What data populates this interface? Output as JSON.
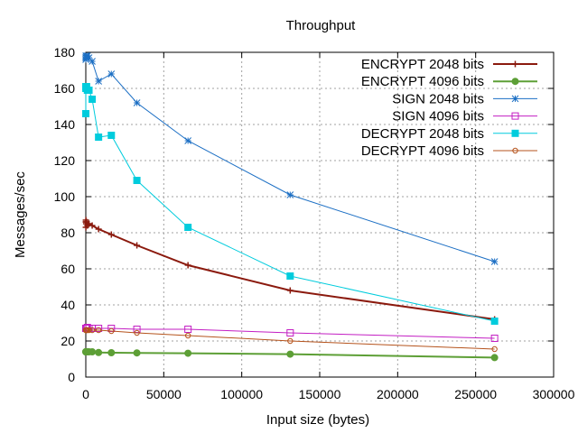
{
  "chart_data": {
    "type": "line",
    "title": "Throughput",
    "xlabel": "Input size (bytes)",
    "ylabel": "Messages/sec",
    "xlim": [
      0,
      300000
    ],
    "ylim": [
      0,
      180
    ],
    "x_ticks": [
      0,
      50000,
      100000,
      150000,
      200000,
      250000,
      300000
    ],
    "y_ticks": [
      0,
      20,
      40,
      60,
      80,
      100,
      120,
      140,
      160,
      180
    ],
    "x_tick_labels": [
      "0",
      "50000",
      "100000",
      "150000",
      "200000",
      "250000",
      "300000"
    ],
    "y_tick_labels": [
      "0",
      "20",
      "40",
      "60",
      "80",
      "100",
      "120",
      "140",
      "160",
      "180"
    ],
    "grid": true,
    "legend_position": "top-right",
    "series": [
      {
        "name": "ENCRYPT 2048 bits",
        "color": "#8b1a0e",
        "marker": "plus",
        "points": [
          [
            16,
            86
          ],
          [
            32,
            83
          ],
          [
            64,
            87
          ],
          [
            128,
            86
          ],
          [
            256,
            85
          ],
          [
            512,
            86
          ],
          [
            1024,
            84
          ],
          [
            2048,
            85
          ],
          [
            4096,
            84
          ],
          [
            8192,
            82
          ],
          [
            16384,
            79
          ],
          [
            32768,
            73
          ],
          [
            65536,
            62
          ],
          [
            131072,
            48
          ],
          [
            262144,
            32
          ]
        ]
      },
      {
        "name": "ENCRYPT 4096 bits",
        "color": "#5d9f36",
        "marker": "filled-circle",
        "points": [
          [
            16,
            14
          ],
          [
            32,
            14
          ],
          [
            64,
            14
          ],
          [
            128,
            14
          ],
          [
            256,
            14
          ],
          [
            512,
            14
          ],
          [
            1024,
            14
          ],
          [
            2048,
            14
          ],
          [
            4096,
            14
          ],
          [
            8192,
            13.6
          ],
          [
            16384,
            13.5
          ],
          [
            32768,
            13.4
          ],
          [
            65536,
            13.2
          ],
          [
            131072,
            12.7
          ],
          [
            262144,
            10.8
          ]
        ]
      },
      {
        "name": "SIGN 2048 bits",
        "color": "#1c6fc4",
        "marker": "star",
        "points": [
          [
            16,
            177
          ],
          [
            32,
            176
          ],
          [
            64,
            178
          ],
          [
            128,
            177
          ],
          [
            256,
            178
          ],
          [
            512,
            177
          ],
          [
            1024,
            178
          ],
          [
            2048,
            177
          ],
          [
            4096,
            175
          ],
          [
            8192,
            164
          ],
          [
            16384,
            168
          ],
          [
            32768,
            152
          ],
          [
            65536,
            131
          ],
          [
            131072,
            101
          ],
          [
            262144,
            64
          ]
        ]
      },
      {
        "name": "SIGN 4096 bits",
        "color": "#c31ec3",
        "marker": "open-square",
        "points": [
          [
            16,
            27
          ],
          [
            32,
            27
          ],
          [
            64,
            27
          ],
          [
            128,
            27
          ],
          [
            256,
            27
          ],
          [
            512,
            27
          ],
          [
            1024,
            27.5
          ],
          [
            2048,
            27
          ],
          [
            4096,
            27
          ],
          [
            8192,
            27
          ],
          [
            16384,
            27
          ],
          [
            32768,
            26.5
          ],
          [
            65536,
            26.5
          ],
          [
            131072,
            24.5
          ],
          [
            262144,
            21.5
          ]
        ]
      },
      {
        "name": "DECRYPT 2048 bits",
        "color": "#00ccdd",
        "marker": "filled-square",
        "points": [
          [
            16,
            146
          ],
          [
            32,
            161
          ],
          [
            64,
            160
          ],
          [
            128,
            161
          ],
          [
            256,
            160
          ],
          [
            512,
            161
          ],
          [
            1024,
            159
          ],
          [
            2048,
            159
          ],
          [
            4096,
            154
          ],
          [
            8192,
            133
          ],
          [
            16384,
            134
          ],
          [
            32768,
            109
          ],
          [
            65536,
            83
          ],
          [
            131072,
            56
          ],
          [
            262144,
            31
          ]
        ]
      },
      {
        "name": "DECRYPT 4096 bits",
        "color": "#b5531c",
        "marker": "open-circle",
        "points": [
          [
            16,
            26
          ],
          [
            32,
            26
          ],
          [
            64,
            26
          ],
          [
            128,
            26
          ],
          [
            256,
            26
          ],
          [
            512,
            26
          ],
          [
            1024,
            26
          ],
          [
            2048,
            26
          ],
          [
            4096,
            26
          ],
          [
            8192,
            26
          ],
          [
            16384,
            25.5
          ],
          [
            32768,
            24.5
          ],
          [
            65536,
            23
          ],
          [
            131072,
            20
          ],
          [
            262144,
            15.5
          ]
        ]
      }
    ]
  }
}
